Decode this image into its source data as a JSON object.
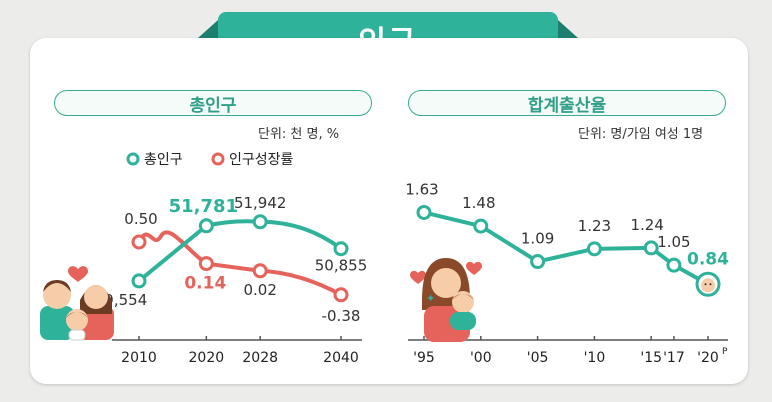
{
  "title": "인구",
  "colors": {
    "teal": "#2fb29a",
    "red": "#e5635a",
    "axis": "#555555"
  },
  "left": {
    "panel_title": "총인구",
    "unit": "단위: 천 명, %",
    "legend": [
      {
        "label": "총인구",
        "color": "#2fb29a"
      },
      {
        "label": "인구성장률",
        "color": "#e5635a"
      }
    ]
  },
  "right": {
    "panel_title": "합계출산율",
    "unit": "단위: 명/가임 여성 1명"
  },
  "chart_data": [
    {
      "type": "line",
      "title": "총인구",
      "x": [
        "2010",
        "2020",
        "2028",
        "2040"
      ],
      "series": [
        {
          "name": "총인구",
          "x": [
            2010,
            2020,
            2028,
            2040
          ],
          "values": [
            49554,
            51781,
            51942,
            50855
          ],
          "labels": [
            "49,554",
            "51,781",
            "51,942",
            "50,855"
          ],
          "highlight": [
            false,
            true,
            false,
            false
          ]
        },
        {
          "name": "인구성장률",
          "x": [
            2010,
            2020,
            2028,
            2040
          ],
          "values": [
            0.5,
            0.14,
            0.02,
            -0.38
          ],
          "labels": [
            "0.50",
            "0.14",
            "0.02",
            "-0.38"
          ],
          "highlight": [
            false,
            true,
            false,
            false
          ]
        }
      ],
      "unit": "단위: 천 명, %"
    },
    {
      "type": "line",
      "title": "합계출산율",
      "categories": [
        "'95",
        "'00",
        "'05",
        "'10",
        "'15",
        "'17",
        "'20P"
      ],
      "x_years": [
        1995,
        2000,
        2005,
        2010,
        2015,
        2017,
        2020
      ],
      "series": [
        {
          "name": "합계출산율",
          "values": [
            1.63,
            1.48,
            1.09,
            1.23,
            1.24,
            1.05,
            0.84
          ],
          "labels": [
            "1.63",
            "1.48",
            "1.09",
            "1.23",
            "1.24",
            "1.05",
            "0.84"
          ]
        }
      ],
      "unit": "단위: 명/가임 여성 1명"
    }
  ]
}
